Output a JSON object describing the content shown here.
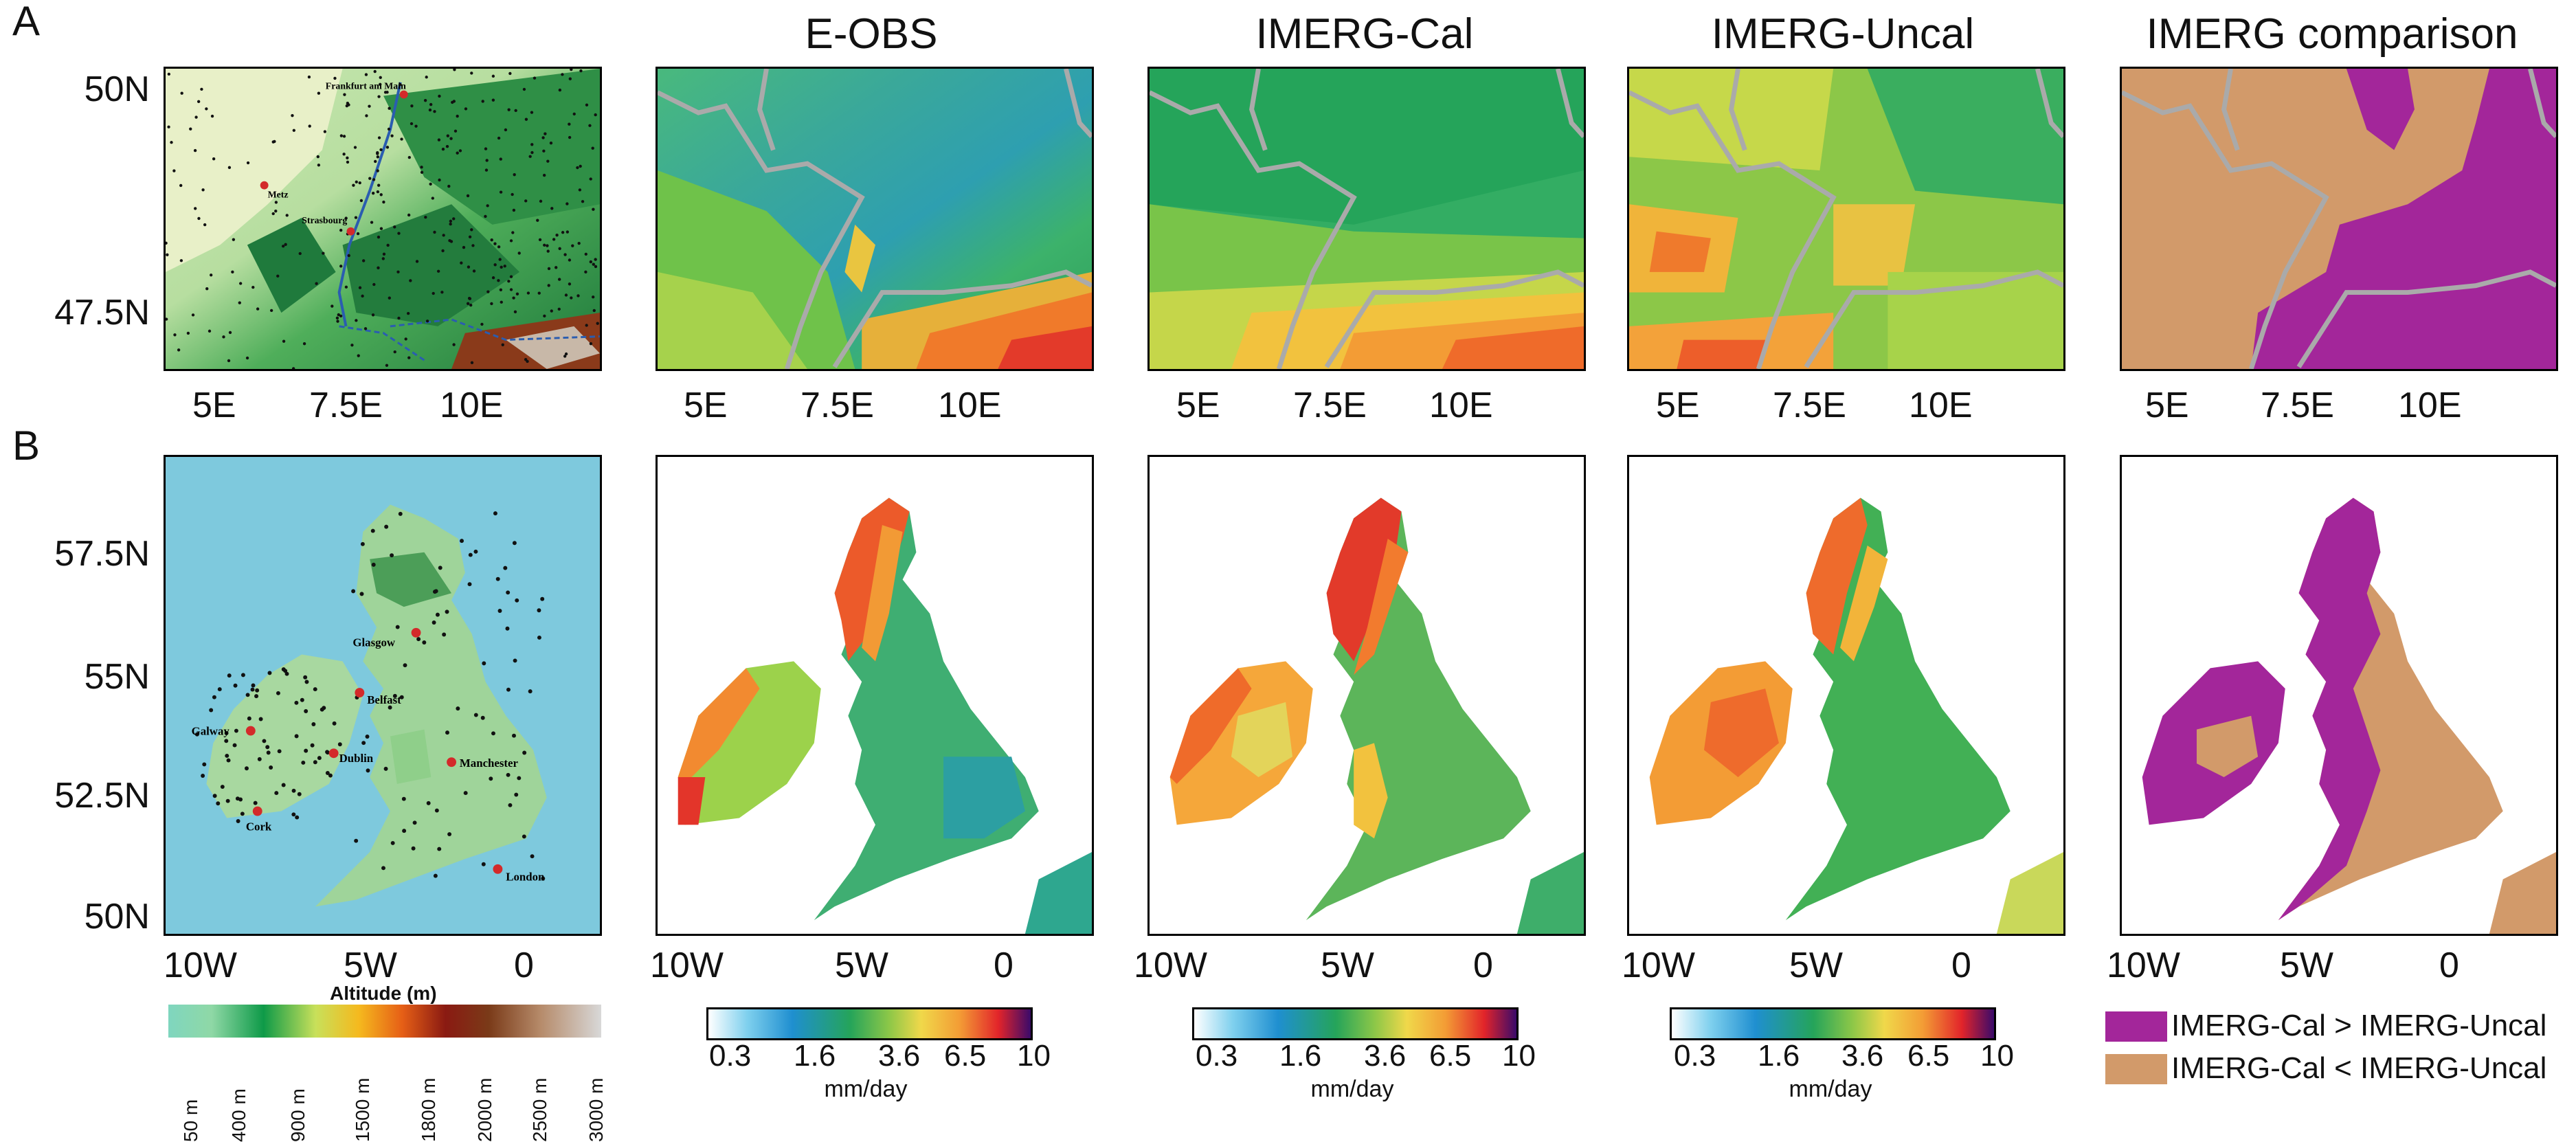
{
  "rows": {
    "a": "A",
    "b": "B"
  },
  "columns": [
    "E-OBS",
    "IMERG-Cal",
    "IMERG-Uncal",
    "IMERG comparison"
  ],
  "row_a": {
    "yticks": [
      "50N",
      "47.5N"
    ],
    "xticks": [
      "5E",
      "7.5E",
      "10E"
    ],
    "cities": [
      "Metz",
      "Strasbourg",
      "Frankfurt am Main"
    ]
  },
  "row_b": {
    "yticks": [
      "57.5N",
      "55N",
      "52.5N",
      "50N"
    ],
    "xticks": [
      "10W",
      "5W",
      "0"
    ],
    "cities": [
      "Glasgow",
      "Belfast",
      "Galway",
      "Dublin",
      "Manchester",
      "Cork",
      "London"
    ]
  },
  "altitude_legend": {
    "title": "Altitude (m)",
    "labels": [
      "50 m",
      "400 m",
      "900 m",
      "1500 m",
      "1800 m",
      "2000 m",
      "2500 m",
      "3000 m"
    ]
  },
  "precip_colorbar": {
    "ticks": [
      "0.3",
      "1.6",
      "3.6",
      "6.5",
      "10"
    ],
    "unit": "mm/day"
  },
  "comparison_legend": {
    "items": [
      {
        "label": "IMERG-Cal > IMERG-Uncal",
        "color": "#a3269a"
      },
      {
        "label": "IMERG-Cal < IMERG-Uncal",
        "color": "#d29a6a"
      }
    ]
  },
  "colors": {
    "sea": "#7ec9dd",
    "border": "#9a9a9a",
    "cmp_more": "#a3269a",
    "cmp_less": "#d29a6a"
  }
}
